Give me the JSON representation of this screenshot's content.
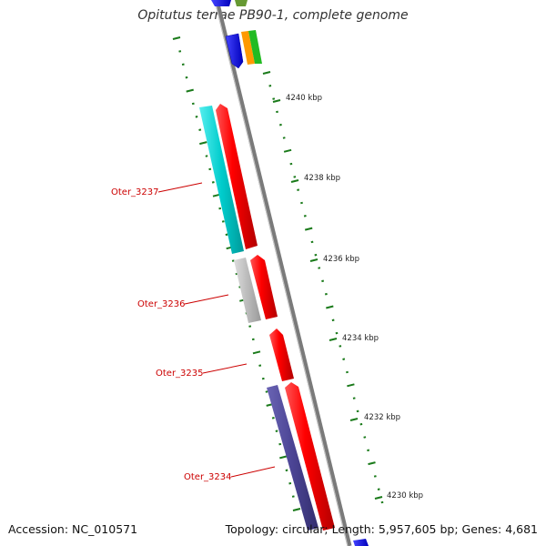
{
  "title": "Opitutus terrae PB90-1, complete genome",
  "footer": {
    "accession": "Accession: NC_010571",
    "summary": "Topology: circular; Length: 5,957,605 bp; Genes: 4,681"
  },
  "ticks": [
    "4240 kbp",
    "4238 kbp",
    "4236 kbp",
    "4234 kbp",
    "4232 kbp",
    "4230 kbp"
  ],
  "gene_labels": [
    "Oter_3237",
    "Oter_3236",
    "Oter_3235",
    "Oter_3234"
  ],
  "colors": {
    "backbone": "#7a7a7a",
    "cds_red": "#ff0000",
    "cyan": "#00cccc",
    "grey": "#bbbbbb",
    "purple": "#4b4494",
    "blue": "#0000ff",
    "orange": "#ff9900",
    "green": "#22bb22",
    "olive": "#669933",
    "tick_green": "#1a7a1a",
    "label_red": "#cc0000"
  }
}
